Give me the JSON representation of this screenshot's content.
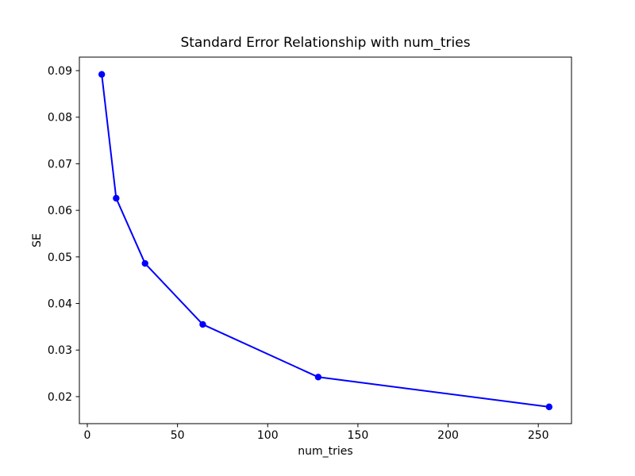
{
  "figure": {
    "background": "#ffffff",
    "spine_color": "#000000",
    "tick_color": "#000000",
    "text_color": "#000000"
  },
  "chart_data": {
    "type": "line",
    "title": "Standard Error Relationship with num_tries",
    "xlabel": "num_tries",
    "ylabel": "SE",
    "x": [
      8,
      16,
      32,
      64,
      128,
      256
    ],
    "y": [
      0.0892,
      0.0626,
      0.0486,
      0.0355,
      0.0242,
      0.0178
    ],
    "line_color": "#0000ff",
    "marker": "circle",
    "marker_color": "#0000ff",
    "grid": false,
    "legend": "none",
    "xlim": [
      -4.4,
      268.4
    ],
    "ylim": [
      0.0142,
      0.0929
    ],
    "xticks": [
      0,
      50,
      100,
      150,
      200,
      250
    ],
    "xtick_labels": [
      "0",
      "50",
      "100",
      "150",
      "200",
      "250"
    ],
    "yticks": [
      0.02,
      0.03,
      0.04,
      0.05,
      0.06,
      0.07,
      0.08,
      0.09
    ],
    "ytick_labels": [
      "0.02",
      "0.03",
      "0.04",
      "0.05",
      "0.06",
      "0.07",
      "0.08",
      "0.09"
    ]
  }
}
